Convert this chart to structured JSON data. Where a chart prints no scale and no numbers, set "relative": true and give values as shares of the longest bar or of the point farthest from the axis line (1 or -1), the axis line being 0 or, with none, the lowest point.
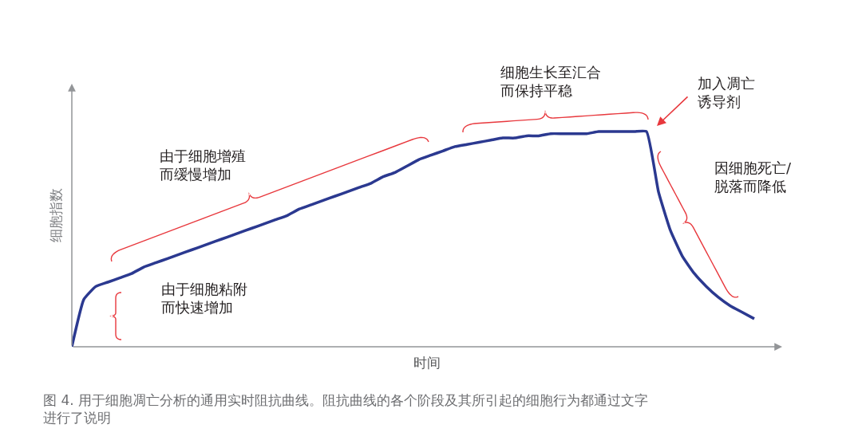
{
  "chart_data": {
    "type": "line",
    "relative": true,
    "xlabel": "时间",
    "ylabel": "细胞指数",
    "marker": "none",
    "line_style": "solid",
    "categories": [
      null,
      null,
      null,
      null,
      null,
      null,
      null,
      null,
      null,
      null,
      null,
      null,
      null,
      null,
      null,
      null,
      null,
      null,
      null,
      null,
      null,
      null,
      null,
      null,
      null,
      null,
      null,
      null,
      null,
      null,
      null,
      null,
      null,
      null,
      null,
      null,
      null,
      null,
      null,
      null,
      null,
      null,
      null,
      null,
      null,
      null,
      null,
      null,
      null,
      null,
      null,
      null,
      null,
      null,
      null,
      null,
      null,
      null
    ],
    "series": [
      {
        "color": "#2b3990",
        "values": [
          0,
          0.22,
          0.28,
          0.3,
          0.32,
          0.34,
          0.37,
          0.39,
          0.41,
          0.43,
          0.45,
          0.47,
          0.49,
          0.51,
          0.53,
          0.55,
          0.57,
          0.59,
          0.61,
          0.64,
          0.66,
          0.68,
          0.7,
          0.72,
          0.74,
          0.76,
          0.79,
          0.81,
          0.84,
          0.87,
          0.89,
          0.91,
          0.93,
          0.94,
          0.95,
          0.96,
          0.97,
          0.97,
          0.98,
          0.98,
          0.99,
          0.99,
          0.99,
          0.99,
          1,
          1,
          1,
          1,
          1,
          0.72,
          0.54,
          0.42,
          0.34,
          0.28,
          0.23,
          0.19,
          0.16,
          0.13
        ]
      }
    ],
    "annotations": [
      "由于细胞粘附而快速增加",
      "由于细胞增殖而缓慢增加",
      "细胞生长至汇合而保持平稳",
      "加入凋亡诱导剂",
      "因细胞死亡/脱落而降低",
      "图 4. 用于细胞凋亡分析的通用实时阻抗曲线。阻抗曲线的各个阶段及其所引起的细胞行为都通过文字进行了说明"
    ]
  }
}
